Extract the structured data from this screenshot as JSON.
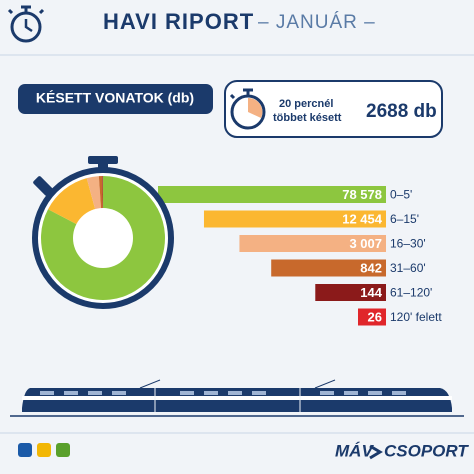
{
  "header": {
    "title": "HAVI RIPORT",
    "subtitle": "– JANUÁR –"
  },
  "section_label": "KÉSETT VONATOK (db)",
  "callout": {
    "text_line1": "20 percnél",
    "text_line2": "többet késett",
    "value": "2688 db"
  },
  "chart_data": {
    "type": "bar",
    "orientation": "horizontal",
    "log_scale": true,
    "categories": [
      "0–5'",
      "6–15'",
      "16–30'",
      "31–60'",
      "61–120'",
      "120' felett"
    ],
    "values": [
      78578,
      12454,
      3007,
      842,
      144,
      26
    ],
    "value_labels": [
      "78 578",
      "12 454",
      "3 007",
      "842",
      "144",
      "26"
    ],
    "colors": [
      "#8dc63f",
      "#fbb731",
      "#f4b183",
      "#c8692c",
      "#8b1a1a",
      "#e0262b"
    ]
  },
  "footer": {
    "brand": "MÁV",
    "brand2": "CSOPORT"
  }
}
